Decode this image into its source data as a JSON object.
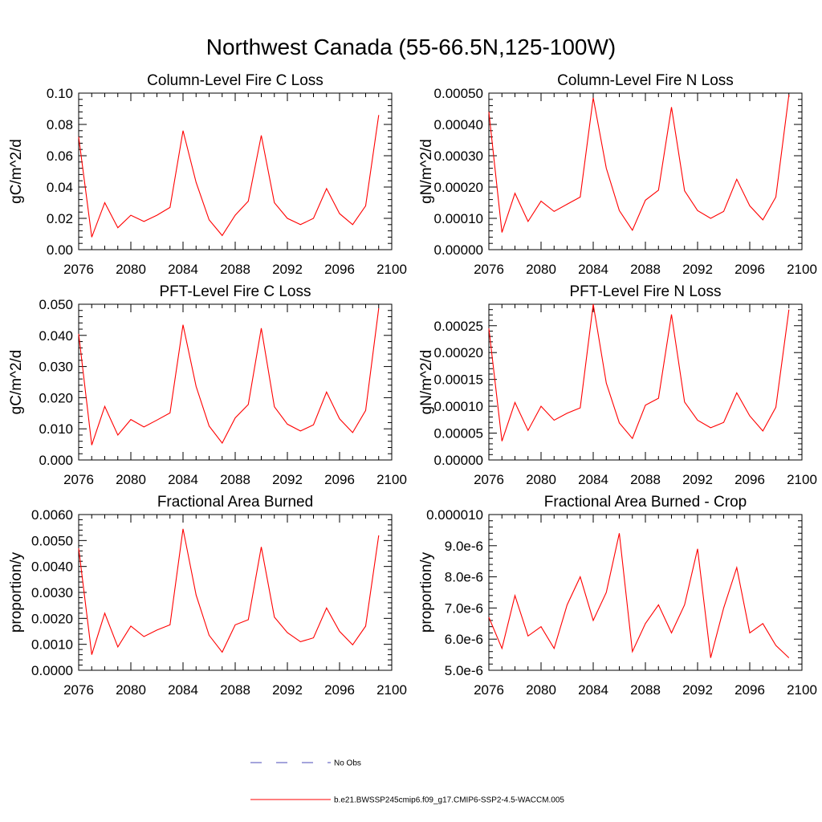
{
  "figure": {
    "title": "Northwest Canada (55-66.5N,125-100W)"
  },
  "legend": {
    "entries": [
      {
        "label": "No Obs",
        "color": "#4b4bb8",
        "dash": true
      },
      {
        "label": "b.e21.BWSSP245cmip6.f09_g17.CMIP6-SSP2-4.5-WACCM.005",
        "color": "#ff0000",
        "dash": false
      }
    ]
  },
  "chart_data": [
    {
      "type": "line",
      "title": "Column-Level Fire C Loss",
      "ylabel": "gC/m^2/d",
      "xlim": [
        2076,
        2100
      ],
      "ylim": [
        0,
        0.1
      ],
      "x_ticks": [
        "2076",
        "2080",
        "2084",
        "2088",
        "2092",
        "2096",
        "2100"
      ],
      "y_ticks": [
        {
          "v": 0.0,
          "label": "0.00"
        },
        {
          "v": 0.02,
          "label": "0.02"
        },
        {
          "v": 0.04,
          "label": "0.04"
        },
        {
          "v": 0.06,
          "label": "0.06"
        },
        {
          "v": 0.08,
          "label": "0.08"
        },
        {
          "v": 0.1,
          "label": "0.10"
        }
      ],
      "x": [
        2076,
        2077,
        2078,
        2079,
        2080,
        2081,
        2082,
        2083,
        2084,
        2085,
        2086,
        2087,
        2088,
        2089,
        2090,
        2091,
        2092,
        2093,
        2094,
        2095,
        2096,
        2097,
        2098,
        2099
      ],
      "series": [
        {
          "color": "#ff0000",
          "values": [
            0.072,
            0.008,
            0.03,
            0.014,
            0.022,
            0.018,
            0.022,
            0.027,
            0.076,
            0.043,
            0.019,
            0.009,
            0.022,
            0.031,
            0.073,
            0.03,
            0.02,
            0.016,
            0.02,
            0.039,
            0.023,
            0.016,
            0.028,
            0.086
          ]
        }
      ]
    },
    {
      "type": "line",
      "title": "Column-Level Fire N Loss",
      "ylabel": "gN/m^2/d",
      "xlim": [
        2076,
        2100
      ],
      "ylim": [
        0,
        0.0005
      ],
      "x_ticks": [
        "2076",
        "2080",
        "2084",
        "2088",
        "2092",
        "2096",
        "2100"
      ],
      "y_ticks": [
        {
          "v": 0.0,
          "label": "0.00000"
        },
        {
          "v": 0.0001,
          "label": "0.00010"
        },
        {
          "v": 0.0002,
          "label": "0.00020"
        },
        {
          "v": 0.0003,
          "label": "0.00030"
        },
        {
          "v": 0.0004,
          "label": "0.00040"
        },
        {
          "v": 0.0005,
          "label": "0.00050"
        }
      ],
      "x": [
        2076,
        2077,
        2078,
        2079,
        2080,
        2081,
        2082,
        2083,
        2084,
        2085,
        2086,
        2087,
        2088,
        2089,
        2090,
        2091,
        2092,
        2093,
        2094,
        2095,
        2096,
        2097,
        2098,
        2099
      ],
      "series": [
        {
          "color": "#ff0000",
          "values": [
            0.00044,
            5.5e-05,
            0.00018,
            9e-05,
            0.000155,
            0.000122,
            0.000145,
            0.000168,
            0.000485,
            0.00026,
            0.000125,
            6.2e-05,
            0.000158,
            0.00019,
            0.000455,
            0.000188,
            0.000125,
            0.0001,
            0.000122,
            0.000225,
            0.00014,
            9.5e-05,
            0.000168,
            0.000495
          ]
        }
      ]
    },
    {
      "type": "line",
      "title": "PFT-Level Fire C Loss",
      "ylabel": "gC/m^2/d",
      "xlim": [
        2076,
        2100
      ],
      "ylim": [
        0,
        0.05
      ],
      "x_ticks": [
        "2076",
        "2080",
        "2084",
        "2088",
        "2092",
        "2096",
        "2100"
      ],
      "y_ticks": [
        {
          "v": 0.0,
          "label": "0.000"
        },
        {
          "v": 0.01,
          "label": "0.010"
        },
        {
          "v": 0.02,
          "label": "0.020"
        },
        {
          "v": 0.03,
          "label": "0.030"
        },
        {
          "v": 0.04,
          "label": "0.040"
        },
        {
          "v": 0.05,
          "label": "0.050"
        }
      ],
      "x": [
        2076,
        2077,
        2078,
        2079,
        2080,
        2081,
        2082,
        2083,
        2084,
        2085,
        2086,
        2087,
        2088,
        2089,
        2090,
        2091,
        2092,
        2093,
        2094,
        2095,
        2096,
        2097,
        2098,
        2099
      ],
      "series": [
        {
          "color": "#ff0000",
          "values": [
            0.0405,
            0.0048,
            0.0172,
            0.008,
            0.013,
            0.0106,
            0.0128,
            0.0151,
            0.0434,
            0.0236,
            0.0109,
            0.0054,
            0.0135,
            0.0178,
            0.0423,
            0.0171,
            0.0115,
            0.0093,
            0.0113,
            0.0218,
            0.0132,
            0.0088,
            0.0159,
            0.0487
          ]
        }
      ]
    },
    {
      "type": "line",
      "title": "PFT-Level Fire N Loss",
      "ylabel": "gN/m^2/d",
      "xlim": [
        2076,
        2100
      ],
      "ylim": [
        0,
        0.00029
      ],
      "x_ticks": [
        "2076",
        "2080",
        "2084",
        "2088",
        "2092",
        "2096",
        "2100"
      ],
      "y_ticks": [
        {
          "v": 0.0,
          "label": "0.00000"
        },
        {
          "v": 5e-05,
          "label": "0.00005"
        },
        {
          "v": 0.0001,
          "label": "0.00010"
        },
        {
          "v": 0.00015,
          "label": "0.00015"
        },
        {
          "v": 0.0002,
          "label": "0.00020"
        },
        {
          "v": 0.00025,
          "label": "0.00025"
        }
      ],
      "x": [
        2076,
        2077,
        2078,
        2079,
        2080,
        2081,
        2082,
        2083,
        2084,
        2085,
        2086,
        2087,
        2088,
        2089,
        2090,
        2091,
        2092,
        2093,
        2094,
        2095,
        2096,
        2097,
        2098,
        2099
      ],
      "series": [
        {
          "color": "#ff0000",
          "values": [
            0.000245,
            3.5e-05,
            0.000107,
            5.5e-05,
            0.0001,
            7.4e-05,
            8.7e-05,
            9.7e-05,
            0.00029,
            0.000143,
            6.9e-05,
            4e-05,
            0.000102,
            0.000115,
            0.000271,
            0.000108,
            7.4e-05,
            6e-05,
            7e-05,
            0.000125,
            8.2e-05,
            5.4e-05,
            9.8e-05,
            0.00028
          ]
        }
      ]
    },
    {
      "type": "line",
      "title": "Fractional Area Burned",
      "ylabel": "proportion/y",
      "xlim": [
        2076,
        2100
      ],
      "ylim": [
        0,
        0.006
      ],
      "x_ticks": [
        "2076",
        "2080",
        "2084",
        "2088",
        "2092",
        "2096",
        "2100"
      ],
      "y_ticks": [
        {
          "v": 0.0,
          "label": "0.0000"
        },
        {
          "v": 0.001,
          "label": "0.0010"
        },
        {
          "v": 0.002,
          "label": "0.0020"
        },
        {
          "v": 0.003,
          "label": "0.0030"
        },
        {
          "v": 0.004,
          "label": "0.0040"
        },
        {
          "v": 0.005,
          "label": "0.0050"
        },
        {
          "v": 0.006,
          "label": "0.0060"
        }
      ],
      "x": [
        2076,
        2077,
        2078,
        2079,
        2080,
        2081,
        2082,
        2083,
        2084,
        2085,
        2086,
        2087,
        2088,
        2089,
        2090,
        2091,
        2092,
        2093,
        2094,
        2095,
        2096,
        2097,
        2098,
        2099
      ],
      "series": [
        {
          "color": "#ff0000",
          "values": [
            0.0047,
            0.0006,
            0.0022,
            0.0009,
            0.0017,
            0.0013,
            0.00155,
            0.00175,
            0.00545,
            0.0029,
            0.00135,
            0.0007,
            0.00175,
            0.00195,
            0.00475,
            0.00205,
            0.00145,
            0.0011,
            0.00125,
            0.0024,
            0.0015,
            0.00098,
            0.0017,
            0.0052
          ]
        }
      ]
    },
    {
      "type": "line",
      "title": "Fractional Area Burned - Crop",
      "ylabel": "proportion/y",
      "xlim": [
        2076,
        2100
      ],
      "ylim": [
        5e-06,
        1e-05
      ],
      "x_ticks": [
        "2076",
        "2080",
        "2084",
        "2088",
        "2092",
        "2096",
        "2100"
      ],
      "y_ticks": [
        {
          "v": 5e-06,
          "label": "5.0e-6"
        },
        {
          "v": 6e-06,
          "label": "6.0e-6"
        },
        {
          "v": 7e-06,
          "label": "7.0e-6"
        },
        {
          "v": 8e-06,
          "label": "8.0e-6"
        },
        {
          "v": 9e-06,
          "label": "9.0e-6"
        },
        {
          "v": 1e-05,
          "label": "0.000010"
        }
      ],
      "x": [
        2076,
        2077,
        2078,
        2079,
        2080,
        2081,
        2082,
        2083,
        2084,
        2085,
        2086,
        2087,
        2088,
        2089,
        2090,
        2091,
        2092,
        2093,
        2094,
        2095,
        2096,
        2097,
        2098,
        2099
      ],
      "series": [
        {
          "color": "#ff0000",
          "values": [
            6.7e-06,
            5.7e-06,
            7.4e-06,
            6.1e-06,
            6.4e-06,
            5.7e-06,
            7.1e-06,
            8e-06,
            6.6e-06,
            7.5e-06,
            9.4e-06,
            5.6e-06,
            6.5e-06,
            7.1e-06,
            6.2e-06,
            7.1e-06,
            8.9e-06,
            5.4e-06,
            7e-06,
            8.3e-06,
            6.2e-06,
            6.5e-06,
            5.8e-06,
            5.4e-06
          ]
        }
      ]
    }
  ]
}
